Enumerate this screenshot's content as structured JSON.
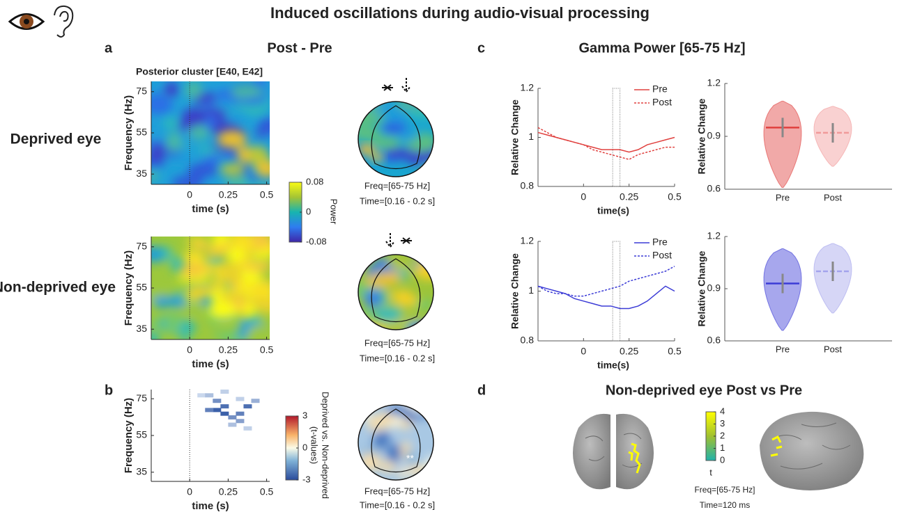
{
  "figure_title": "Induced oscillations during audio-visual processing",
  "panel_a": {
    "label": "a",
    "title": "Post - Pre",
    "subtitle": "Posterior cluster [E40, E42]",
    "rows": [
      "Deprived eye",
      "Non-deprived eye"
    ],
    "heatmap": {
      "ylabel": "Frequency (Hz)",
      "xlabel": "time (s)",
      "xlim": [
        -0.25,
        0.52
      ],
      "ylim": [
        30,
        80
      ],
      "xticks": [
        0,
        0.25,
        0.5
      ],
      "yticks": [
        35,
        55,
        75
      ]
    },
    "colorbar": {
      "label": "Power",
      "lim": [
        -0.08,
        0.08
      ],
      "ticks": [
        0.08,
        0,
        -0.08
      ]
    },
    "topo_caption": [
      "Freq=[65-75 Hz]",
      "Time=[0.16 - 0.2 s]"
    ]
  },
  "panel_b": {
    "label": "b",
    "heatmap": {
      "ylabel": "Frequency (Hz)",
      "xlabel": "time (s)",
      "xlim": [
        -0.25,
        0.52
      ],
      "ylim": [
        30,
        80
      ],
      "xticks": [
        0,
        0.25,
        0.5
      ],
      "yticks": [
        35,
        55,
        75
      ]
    },
    "colorbar": {
      "label": [
        "Deprived vs. Non-deprived",
        "(t-values)"
      ],
      "lim": [
        -3,
        3
      ],
      "ticks": [
        3,
        0,
        -3
      ]
    },
    "topo_caption": [
      "Freq=[65-75 Hz]",
      "Time=[0.16 - 0.2 s]"
    ]
  },
  "panel_c": {
    "label": "c",
    "title": "Gamma Power [65-75 Hz]"
  },
  "panel_d": {
    "label": "d",
    "title": "Non-deprived eye Post vs Pre",
    "colorbar": {
      "label": "t",
      "lim": [
        0,
        4
      ],
      "ticks": [
        4,
        3,
        2,
        1,
        0
      ]
    },
    "caption": [
      "Freq=[65-75 Hz]",
      "Time=120 ms"
    ]
  },
  "chart_data": [
    {
      "type": "line",
      "xlabel": "time(s)",
      "ylabel": "Relative Change",
      "x": [
        -0.25,
        -0.2,
        -0.15,
        -0.1,
        -0.05,
        0,
        0.05,
        0.1,
        0.15,
        0.2,
        0.25,
        0.3,
        0.35,
        0.4,
        0.45,
        0.5
      ],
      "xlim": [
        -0.25,
        0.5
      ],
      "ylim": [
        0.8,
        1.2
      ],
      "xticks": [
        0,
        0.25,
        0.5
      ],
      "yticks": [
        0.8,
        1,
        1.2
      ],
      "highlight_window": [
        0.16,
        0.2
      ],
      "series": [
        {
          "name": "Pre",
          "color": "#e0403e",
          "linestyle": "solid",
          "values": [
            1.02,
            1.01,
            1.0,
            0.99,
            0.98,
            0.97,
            0.96,
            0.95,
            0.95,
            0.95,
            0.94,
            0.95,
            0.97,
            0.98,
            0.99,
            1.0
          ]
        },
        {
          "name": "Post",
          "color": "#e0403e",
          "linestyle": "dashed",
          "values": [
            1.04,
            1.02,
            1.0,
            0.99,
            0.98,
            0.97,
            0.95,
            0.94,
            0.93,
            0.92,
            0.91,
            0.93,
            0.94,
            0.95,
            0.96,
            0.96
          ]
        }
      ]
    },
    {
      "type": "violin",
      "ylabel": "Relative Change",
      "categories": [
        "Pre",
        "Post"
      ],
      "ylim": [
        0.6,
        1.2
      ],
      "yticks": [
        0.6,
        0.9,
        1.2
      ],
      "colors": [
        "#e0403e",
        "#f19a9a"
      ],
      "values": [
        0.95,
        0.92
      ],
      "min": [
        0.61,
        0.73
      ],
      "max": [
        1.1,
        1.07
      ]
    },
    {
      "type": "line",
      "xlabel": "time(s)",
      "ylabel": "Relative Change",
      "x": [
        -0.25,
        -0.2,
        -0.15,
        -0.1,
        -0.05,
        0,
        0.05,
        0.1,
        0.15,
        0.2,
        0.25,
        0.3,
        0.35,
        0.4,
        0.45,
        0.5
      ],
      "xlim": [
        -0.25,
        0.5
      ],
      "ylim": [
        0.8,
        1.2
      ],
      "xticks": [
        0,
        0.25,
        0.5
      ],
      "yticks": [
        0.8,
        1,
        1.2
      ],
      "highlight_window": [
        0.16,
        0.2
      ],
      "series": [
        {
          "name": "Pre",
          "color": "#3b3bd6",
          "linestyle": "solid",
          "values": [
            1.02,
            1.01,
            1.0,
            0.99,
            0.97,
            0.96,
            0.95,
            0.94,
            0.94,
            0.93,
            0.93,
            0.94,
            0.96,
            0.99,
            1.02,
            1.0
          ]
        },
        {
          "name": "Post",
          "color": "#3b3bd6",
          "linestyle": "dashed",
          "values": [
            1.02,
            1.0,
            0.99,
            0.99,
            0.98,
            0.98,
            0.99,
            1.0,
            1.01,
            1.02,
            1.04,
            1.05,
            1.06,
            1.07,
            1.08,
            1.1
          ]
        }
      ]
    },
    {
      "type": "violin",
      "ylabel": "Relative Change",
      "categories": [
        "Pre",
        "Post"
      ],
      "ylim": [
        0.6,
        1.2
      ],
      "yticks": [
        0.6,
        0.9,
        1.2
      ],
      "colors": [
        "#3b3bd6",
        "#a3a3ec"
      ],
      "values": [
        0.93,
        1.0
      ],
      "min": [
        0.66,
        0.76
      ],
      "max": [
        1.13,
        1.16
      ]
    }
  ]
}
